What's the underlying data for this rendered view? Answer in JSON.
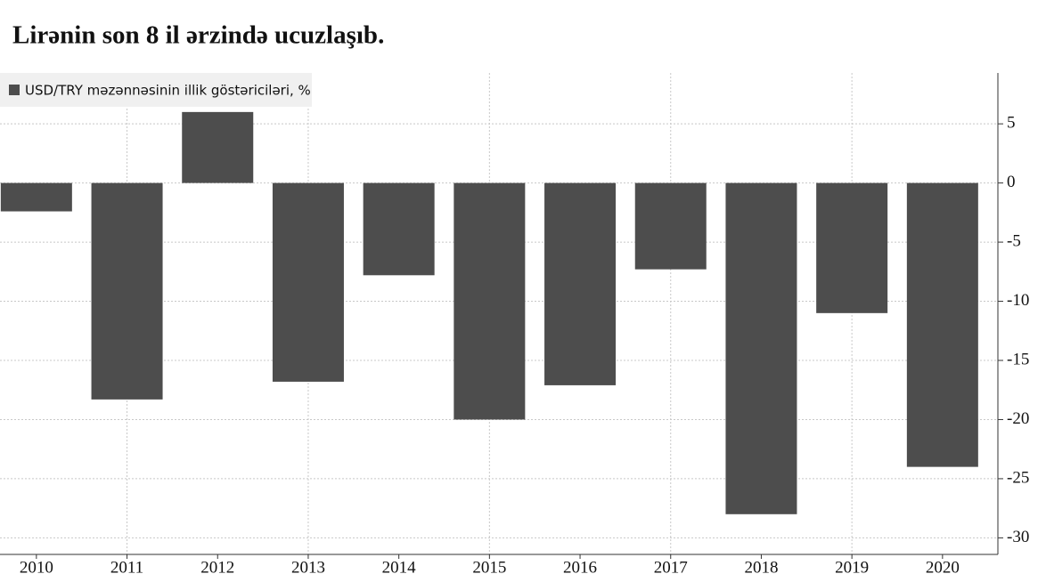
{
  "chart_data": {
    "type": "bar",
    "title": "Lirənin son 8 il ərzində ucuzlaşıb.",
    "categories": [
      "2010",
      "2011",
      "2012",
      "2013",
      "2014",
      "2015",
      "2016",
      "2017",
      "2018",
      "2019",
      "2020"
    ],
    "series": [
      {
        "name": "USD/TRY məzənnəsinin illik göstəriciləri, %",
        "color": "#4d4d4d",
        "values": [
          -2.4,
          -18.3,
          6.0,
          -16.8,
          -7.8,
          -20.0,
          -17.1,
          -7.3,
          -28.0,
          -11.0,
          -24.0
        ]
      }
    ],
    "ylim": [
      -31.4,
      9.3
    ],
    "yticks": [
      5,
      0,
      -5,
      -10,
      -15,
      -20,
      -25,
      -30
    ],
    "grid": true
  }
}
